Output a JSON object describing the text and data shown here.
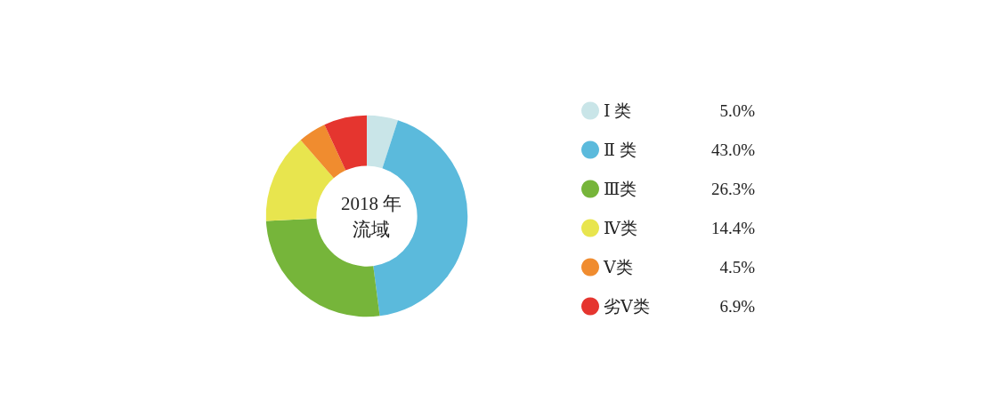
{
  "chart_data": {
    "type": "donut",
    "title": "2018 年",
    "subtitle": "流域",
    "categories": [
      "Ⅰ 类",
      "Ⅱ 类",
      "Ⅲ类",
      "Ⅳ类",
      "Ⅴ类",
      "劣Ⅴ类"
    ],
    "values": [
      5.0,
      43.0,
      26.3,
      14.4,
      4.5,
      6.9
    ],
    "value_labels": [
      "5.0%",
      "43.0%",
      "26.3%",
      "14.4%",
      "4.5%",
      "6.9%"
    ],
    "colors": [
      "#c9e5e8",
      "#5bbadc",
      "#76b53a",
      "#e8e54e",
      "#f08c2f",
      "#e5352f"
    ],
    "legend": "right"
  }
}
